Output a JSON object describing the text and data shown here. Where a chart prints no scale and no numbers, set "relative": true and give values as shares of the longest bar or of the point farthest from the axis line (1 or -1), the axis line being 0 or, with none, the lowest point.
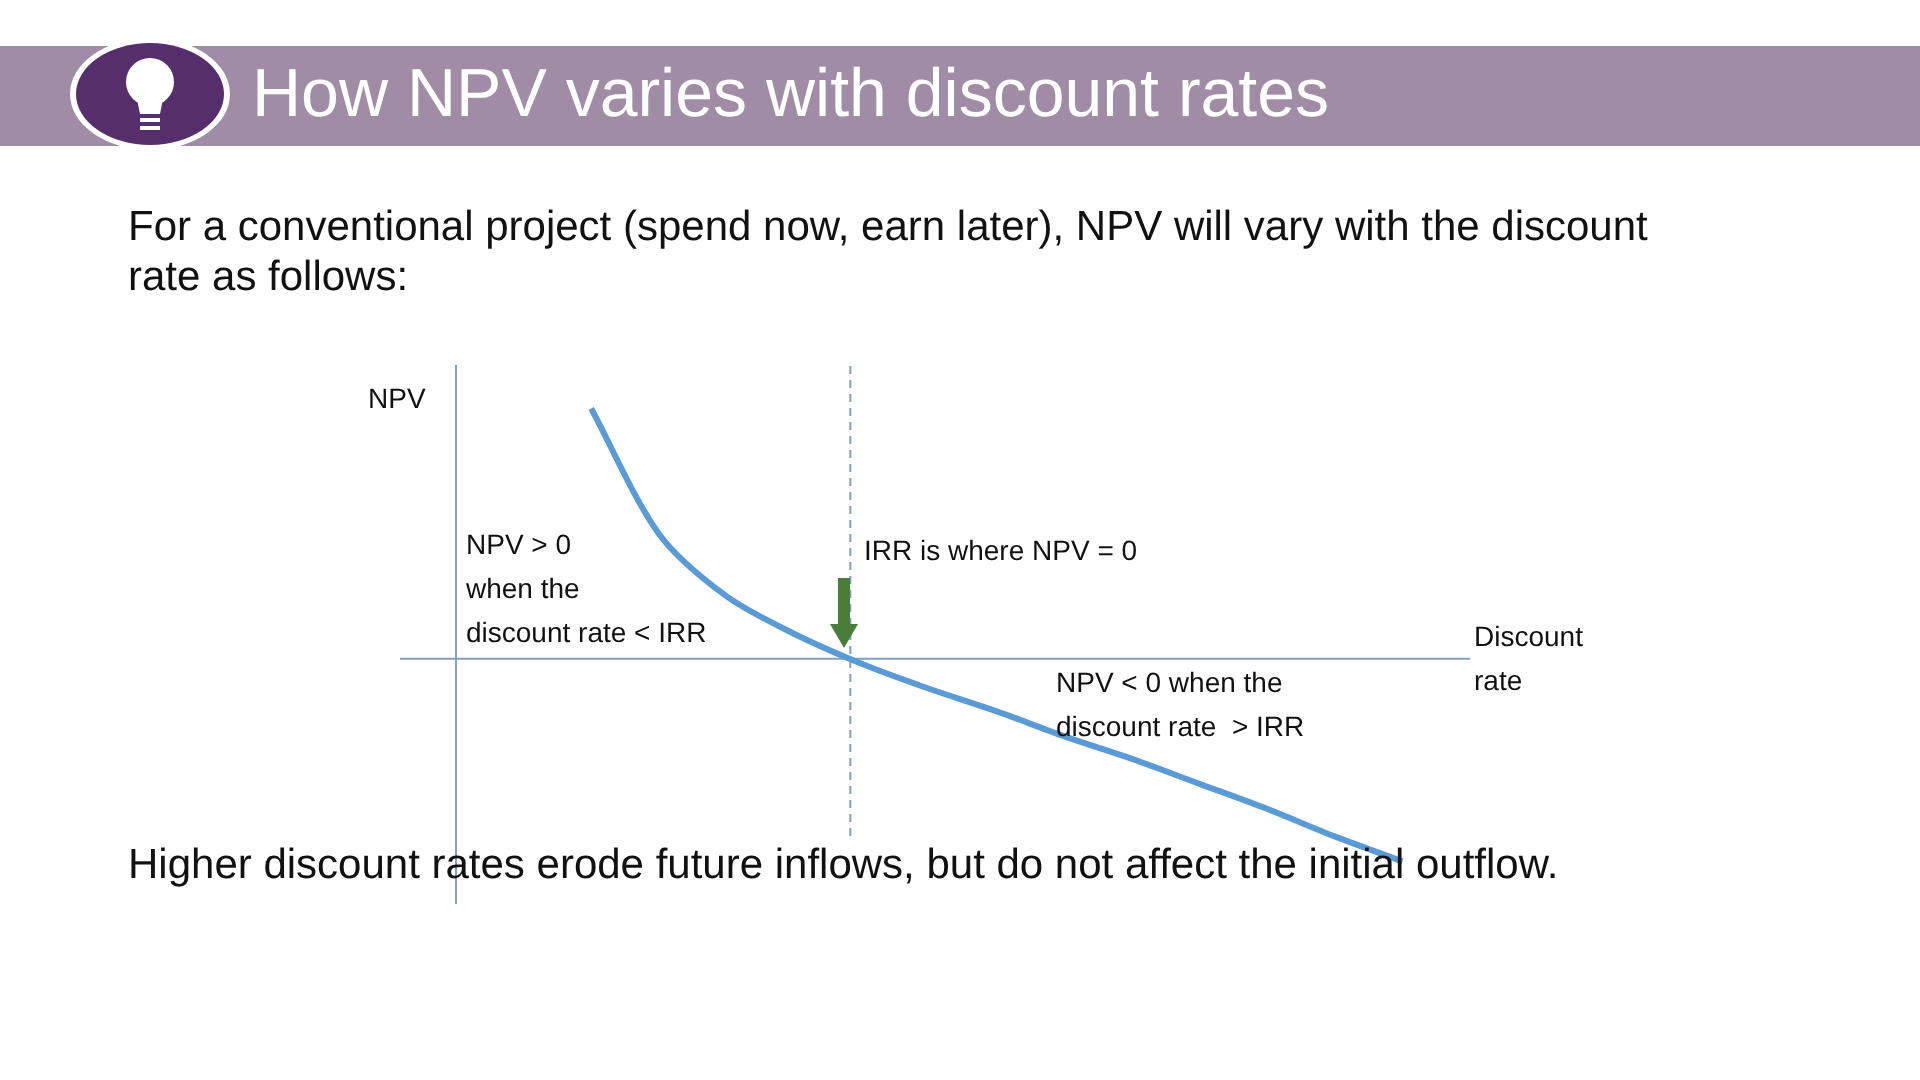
{
  "chart_data": {
    "type": "line",
    "relative": true,
    "title": "How NPV varies with discount rates",
    "subtitle": "For a conventional project (spend now, earn later), NPV will vary with the discount rate as follows:",
    "ylabel": "NPV",
    "xlabel": "Discount rate",
    "categories": [
      null,
      null,
      null,
      null,
      null,
      null,
      null,
      null,
      null,
      null,
      null,
      null,
      null,
      null,
      null,
      null
    ],
    "series": [
      {
        "color": "#5b9bd5",
        "values": [
          null,
          null,
          1,
          0.5,
          0.25,
          0.1,
          -0.02,
          -0.12,
          -0.21,
          -0.31,
          -0.4,
          -0.5,
          -0.6,
          -0.71,
          -0.81,
          null
        ]
      }
    ],
    "annotations": [
      "NPV > 0\nwhen the\ndiscount rate < IRR",
      "IRR is where NPV = 0",
      "NPV < 0 when the\ndiscount rate  > IRR",
      "Higher discount rates erode future inflows, but do not affect the initial outflow."
    ],
    "ref_lines": [
      {
        "axis": "y",
        "value": 0,
        "color": "#7f9fc4"
      }
    ],
    "grid": false,
    "legend": false,
    "marker": "none",
    "line_style": "solid"
  }
}
